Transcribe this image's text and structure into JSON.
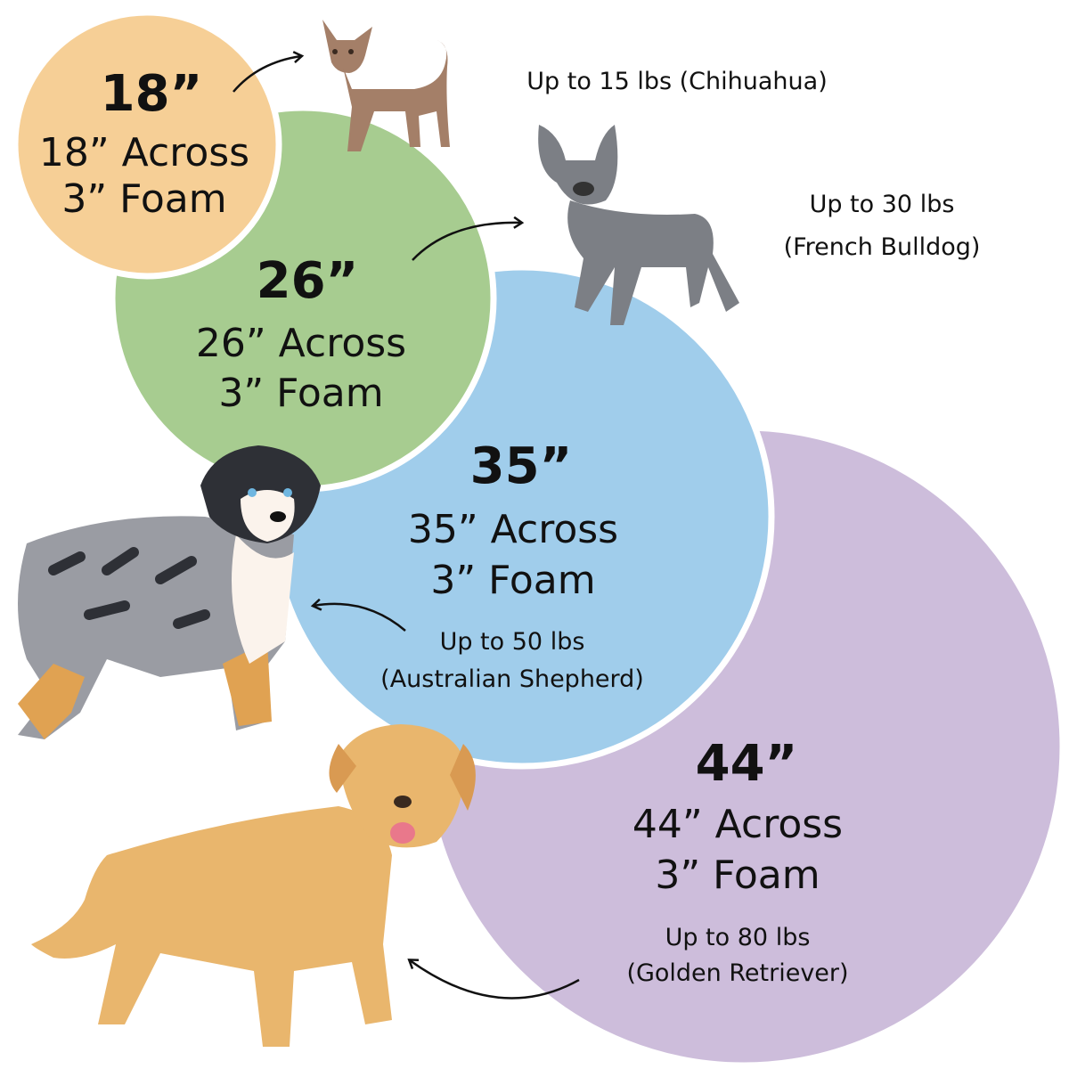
{
  "colors": {
    "circle_18": "#f6cf96",
    "circle_26": "#a7cc90",
    "circle_35": "#a0cdeb",
    "circle_44": "#cdbddb",
    "text": "#111111"
  },
  "sizes": [
    {
      "size": "18”",
      "across": "18” Across",
      "foam": "3” Foam",
      "capacity": "Up to 15 lbs (Chihuahua)",
      "dog_icon": "chihuahua-icon"
    },
    {
      "size": "26”",
      "across": "26” Across",
      "foam": "3” Foam",
      "capacity_line1": "Up to 30 lbs",
      "capacity_line2": "(French Bulldog)",
      "dog_icon": "french-bulldog-icon"
    },
    {
      "size": "35”",
      "across": "35” Across",
      "foam": "3” Foam",
      "capacity_line1": "Up to 50 lbs",
      "capacity_line2": "(Australian Shepherd)",
      "dog_icon": "australian-shepherd-icon"
    },
    {
      "size": "44”",
      "across": "44” Across",
      "foam": "3” Foam",
      "capacity_line1": "Up to 80 lbs",
      "capacity_line2": "(Golden Retriever)",
      "dog_icon": "golden-retriever-icon"
    }
  ]
}
